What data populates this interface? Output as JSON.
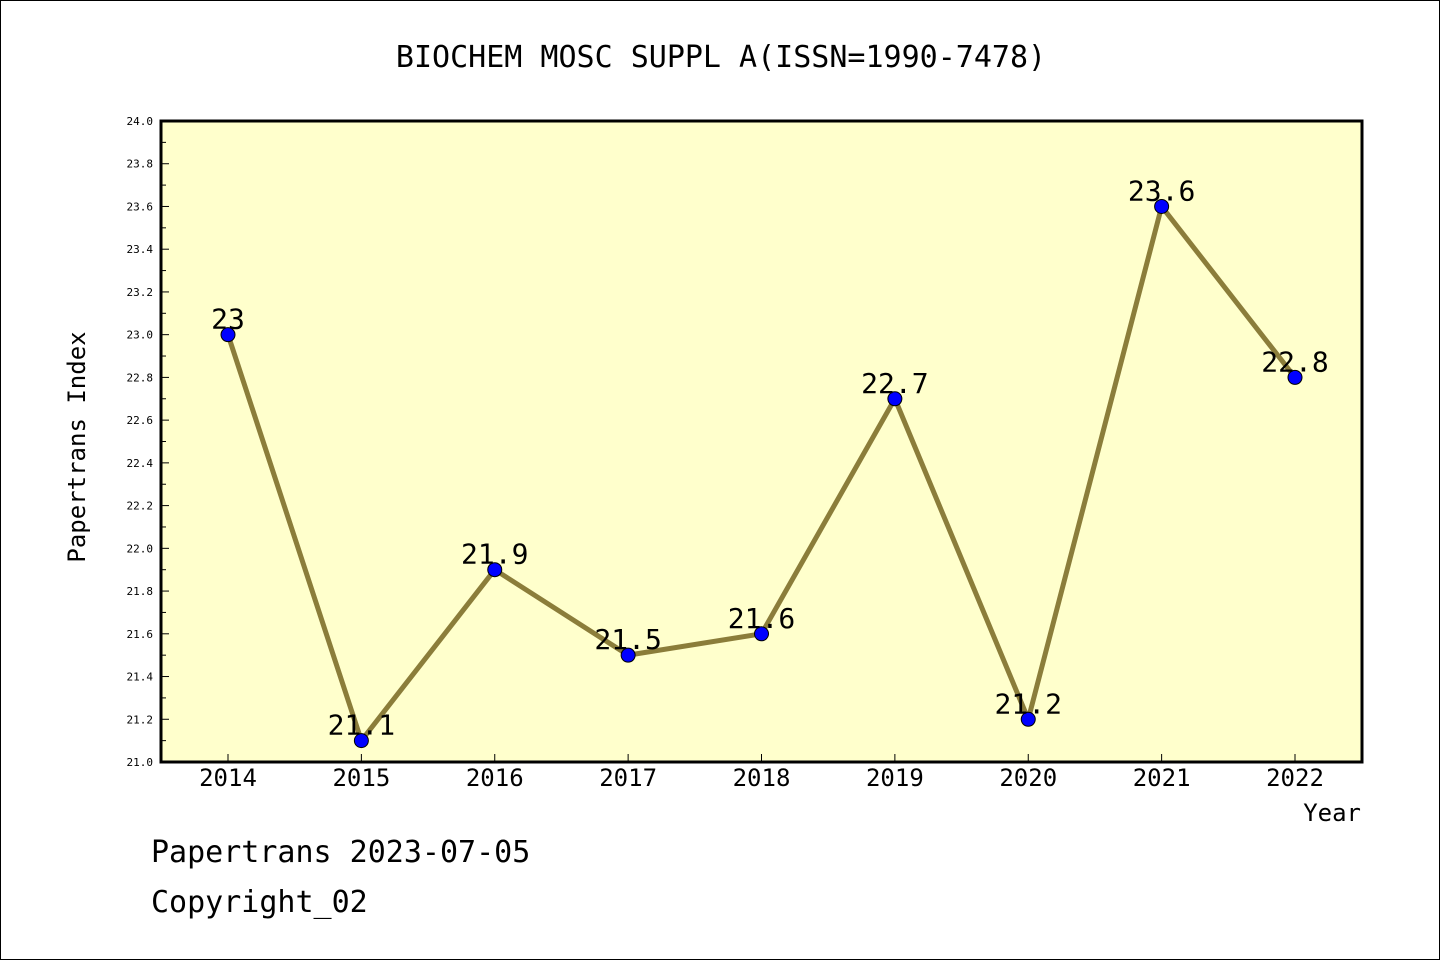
{
  "chart_data": {
    "type": "line",
    "title": "BIOCHEM MOSC SUPPL A(ISSN=1990-7478)",
    "xlabel": "Year",
    "ylabel": "Papertrans Index",
    "categories": [
      "2014",
      "2015",
      "2016",
      "2017",
      "2018",
      "2019",
      "2020",
      "2021",
      "2022"
    ],
    "series": [
      {
        "values": [
          23,
          21.1,
          21.9,
          21.5,
          21.6,
          22.7,
          21.2,
          23.6,
          22.8
        ],
        "labels": [
          "23",
          "21.1",
          "21.9",
          "21.5",
          "21.6",
          "22.7",
          "21.2",
          "23.6",
          "22.8"
        ]
      }
    ],
    "ylim": [
      21.0,
      24.0
    ],
    "yticks": [
      "21.0",
      "21.2",
      "21.4",
      "21.6",
      "21.8",
      "22.0",
      "22.2",
      "22.4",
      "22.6",
      "22.8",
      "23.0",
      "23.2",
      "23.4",
      "23.6",
      "23.8",
      "24.0"
    ],
    "grid": false,
    "colors": {
      "plot_background": "#ffffcc",
      "line": "#8b7d3a",
      "marker": "#0000ff",
      "axis": "#000000"
    }
  },
  "footer": {
    "line1": "Papertrans 2023-07-05",
    "line2": "Copyright_02"
  }
}
